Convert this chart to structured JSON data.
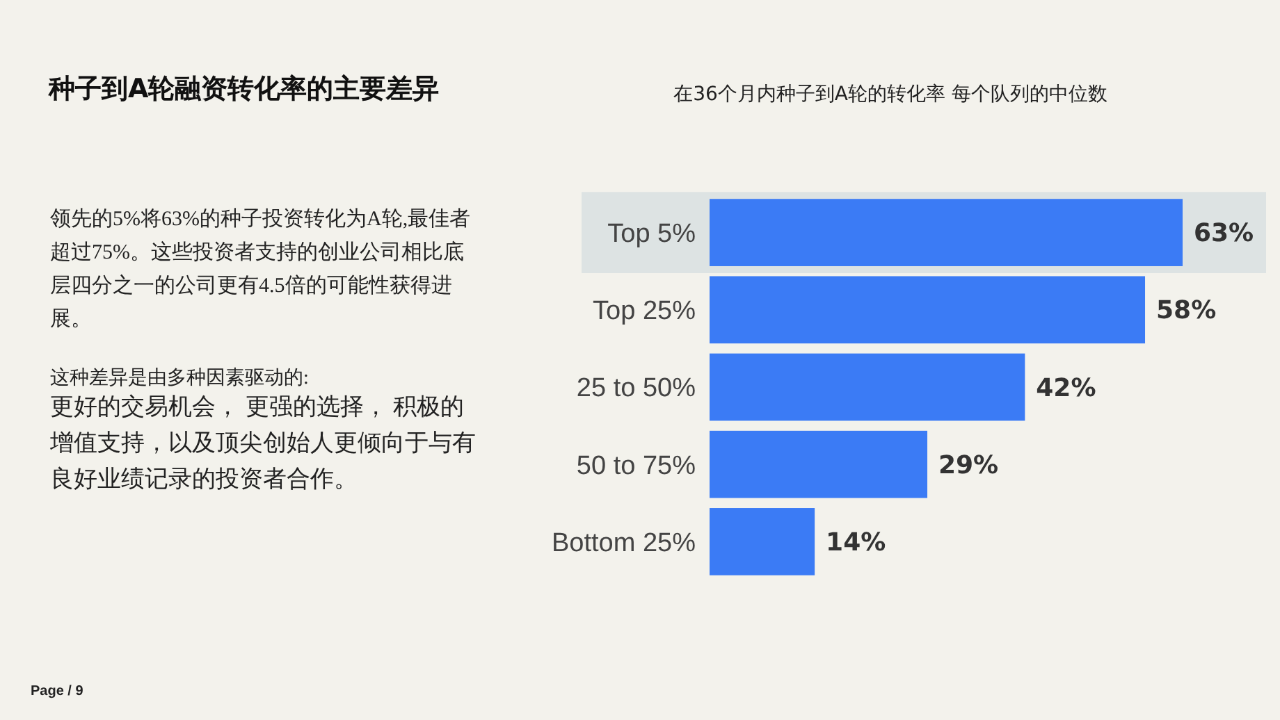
{
  "chart_data": {
    "type": "bar",
    "orientation": "horizontal",
    "title": "种子到A轮融资转化率的主要差异",
    "subtitle": "在36个月内种子到A轮的转化率 每个队列的中位数",
    "categories": [
      "Top 5%",
      "Top 25%",
      "25 to 50%",
      "50 to 75%",
      "Bottom 25%"
    ],
    "values": [
      63,
      58,
      42,
      29,
      14
    ],
    "color": "#3b7bf5",
    "value_labels": [
      "63%",
      "58%",
      "42%",
      "29%",
      "14%"
    ],
    "tick_labels": "y",
    "bands": [
      {
        "axis": "y",
        "from": "Top 5%",
        "to": "Top 5%",
        "color": "#dde3e3"
      }
    ],
    "annotations": [
      "领先的5%将63%的种子投资转化为A轮,最佳者超过75%。这些投资者支持的创业公司相比底层四分之一的公司更有4.5倍的可能性获得进展。",
      "这种差异是由多种因素驱动的:",
      "更好的交易机会， 更强的选择， 积极的增值支持，以及顶尖创始人更倾向于与有良好业绩记录的投资者合作。",
      "Page / 9"
    ]
  }
}
